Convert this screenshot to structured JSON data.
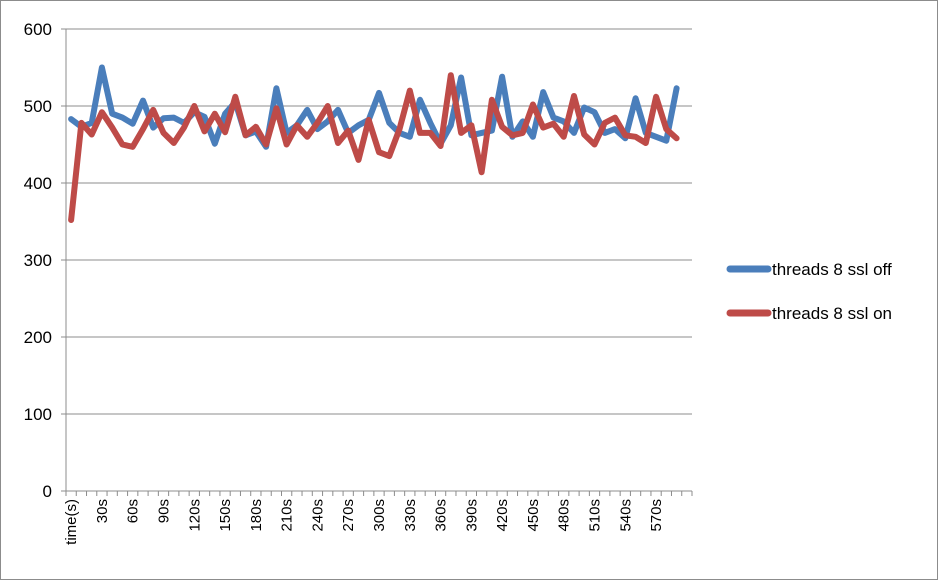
{
  "chart_data": {
    "type": "line",
    "title": "",
    "xlabel": "",
    "ylabel": "",
    "ylim": [
      0,
      600
    ],
    "yticks": [
      "0",
      "100",
      "200",
      "300",
      "400",
      "500",
      "600"
    ],
    "grid": true,
    "legend_position": "right",
    "x_tick_labels": [
      "time(s)",
      "30s",
      "60s",
      "90s",
      "120s",
      "150s",
      "180s",
      "210s",
      "240s",
      "270s",
      "300s",
      "330s",
      "360s",
      "390s",
      "420s",
      "450s",
      "480s",
      "510s",
      "540s",
      "570s"
    ],
    "x": [
      0,
      10,
      20,
      30,
      40,
      50,
      60,
      70,
      80,
      90,
      100,
      110,
      120,
      130,
      140,
      150,
      160,
      170,
      180,
      190,
      200,
      210,
      220,
      230,
      240,
      250,
      260,
      270,
      280,
      290,
      300,
      310,
      320,
      330,
      340,
      350,
      360,
      370,
      380,
      390,
      400,
      410,
      420,
      430,
      440,
      450,
      460,
      470,
      480,
      490,
      500,
      510,
      520,
      530,
      540,
      550,
      560,
      570,
      580,
      590,
      600
    ],
    "series": [
      {
        "name": "threads 8 ssl off",
        "color": "#4a7ebb",
        "values": [
          483,
          473,
          478,
          550,
          490,
          485,
          477,
          507,
          472,
          484,
          485,
          478,
          492,
          486,
          451,
          490,
          505,
          462,
          467,
          447,
          523,
          465,
          475,
          495,
          470,
          480,
          495,
          465,
          475,
          482,
          517,
          478,
          465,
          460,
          508,
          478,
          451,
          475,
          537,
          462,
          465,
          468,
          538,
          460,
          480,
          460,
          518,
          485,
          480,
          465,
          498,
          492,
          465,
          470,
          458,
          510,
          465,
          460,
          455,
          523,
          null
        ],
        "_note_": null
      },
      {
        "name": "threads 8 ssl on",
        "color": "#be4b48",
        "values": [
          352,
          478,
          463,
          492,
          472,
          450,
          447,
          470,
          495,
          465,
          452,
          472,
          500,
          467,
          490,
          466,
          512,
          462,
          473,
          450,
          497,
          450,
          475,
          460,
          478,
          500,
          452,
          468,
          430,
          482,
          440,
          435,
          470,
          520,
          465,
          465,
          448,
          540,
          465,
          475,
          414,
          508,
          473,
          462,
          465,
          502,
          472,
          477,
          460,
          513,
          463,
          450,
          478,
          485,
          462,
          460,
          452,
          512,
          470,
          458,
          null
        ]
      }
    ]
  }
}
